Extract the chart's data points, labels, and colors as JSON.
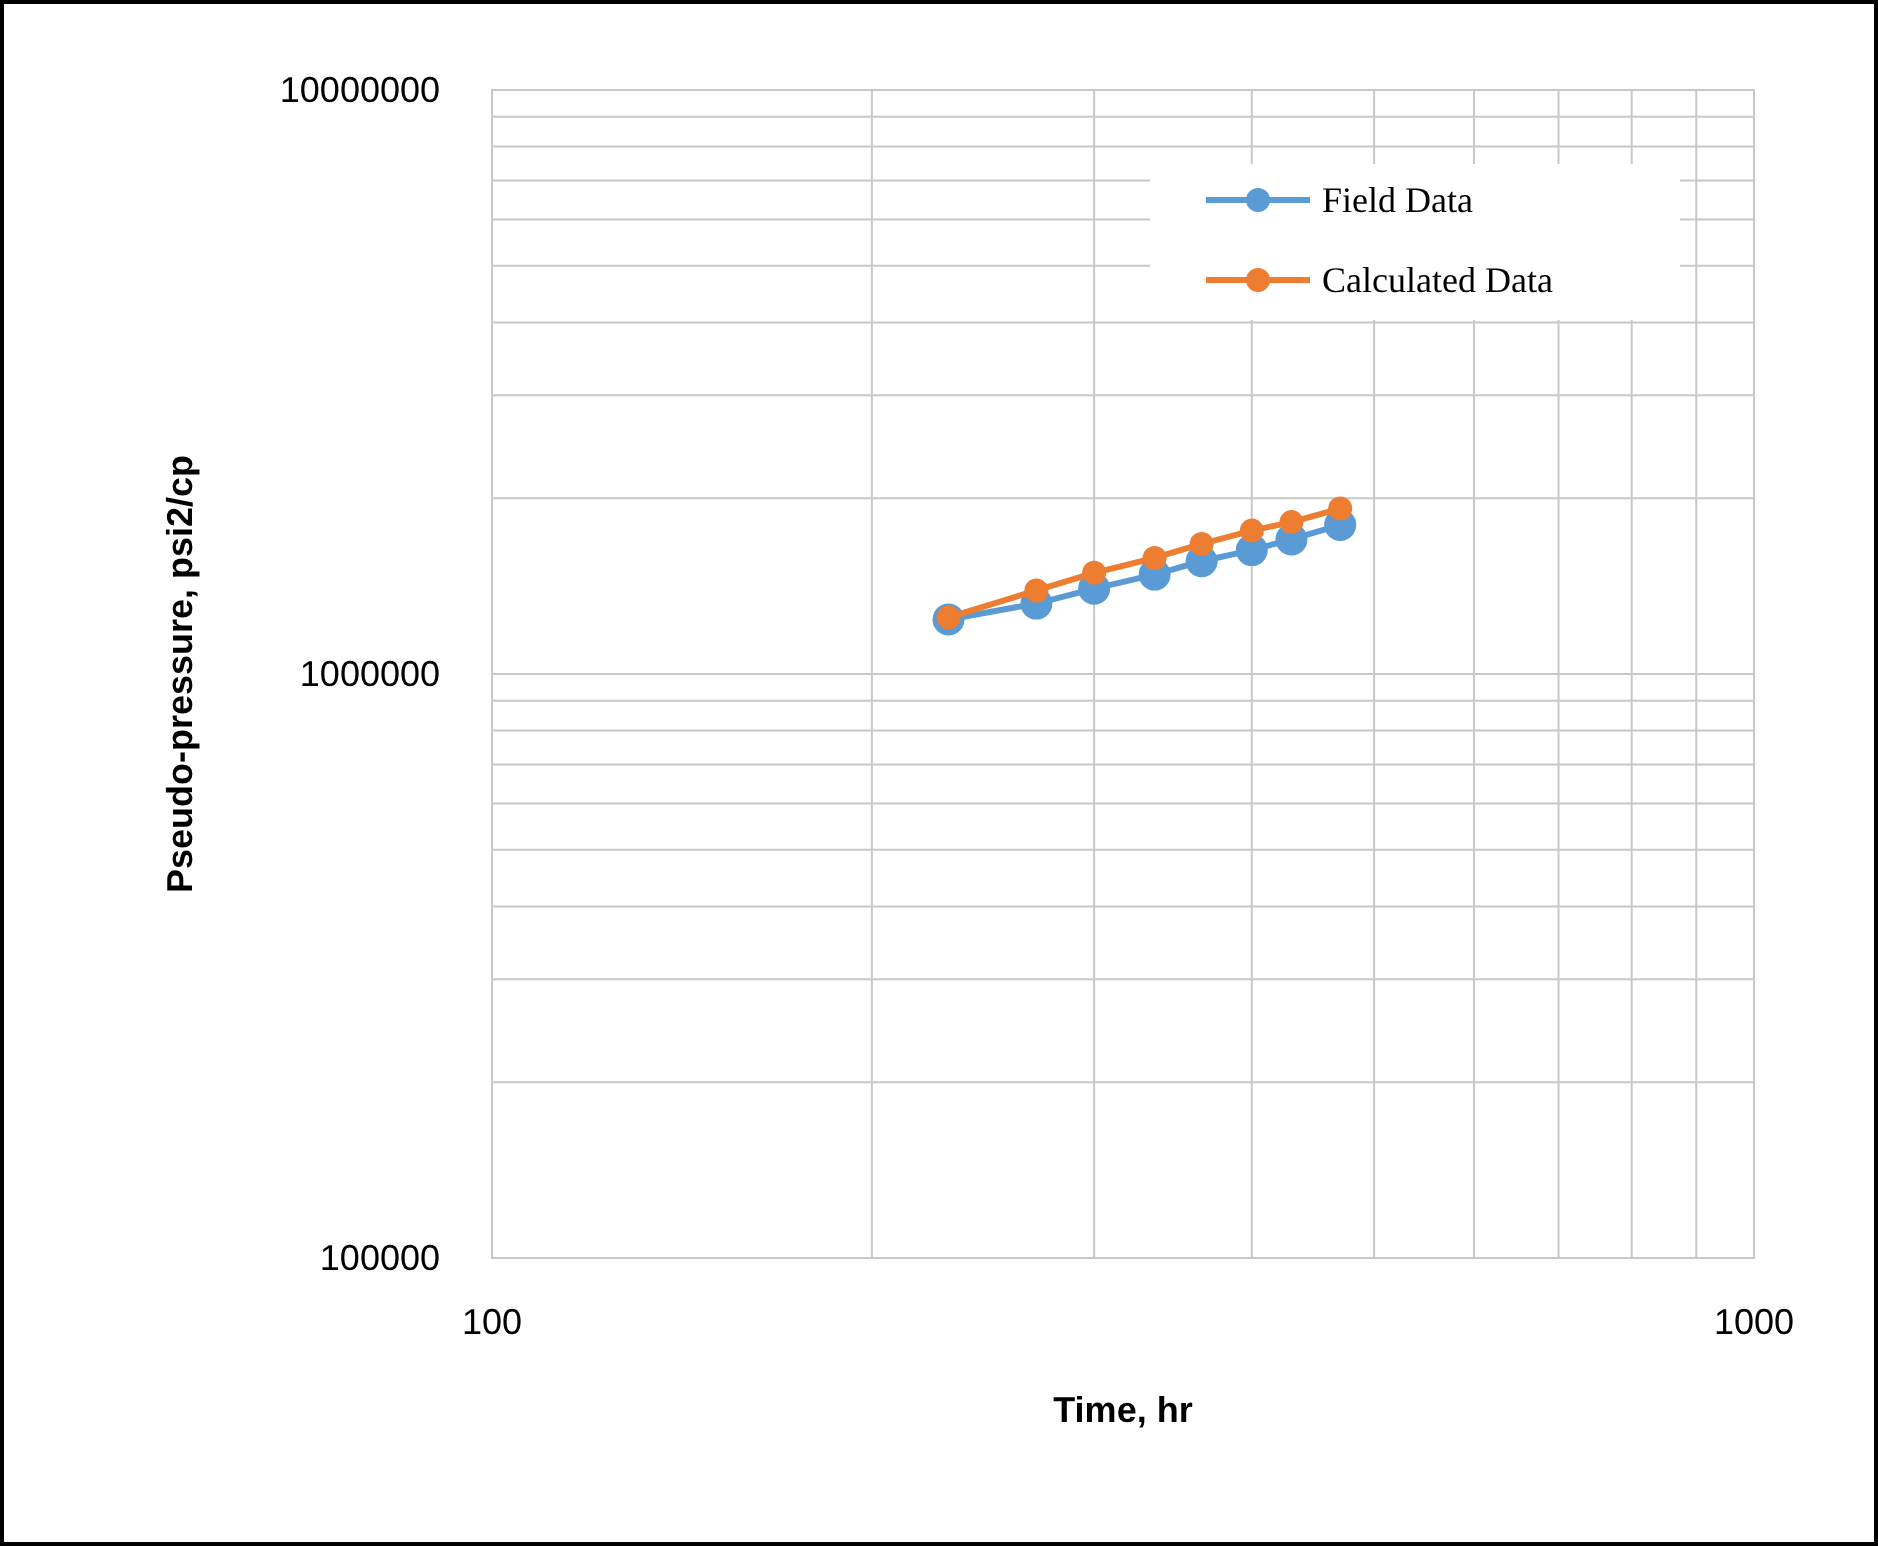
{
  "chart_data": {
    "type": "line",
    "xlabel": "Time, hr",
    "ylabel": "Pseudo-pressure, psi2/cp",
    "log": "xy",
    "grid": true,
    "legend": "top right",
    "marker": "circle",
    "line_style": "solid",
    "xlim": [
      100,
      1000
    ],
    "ylim": [
      100000,
      10000000
    ],
    "xticks": [
      100,
      {
        "value": 200,
        "label": null
      },
      {
        "value": 300,
        "label": null
      },
      {
        "value": 400,
        "label": null
      },
      {
        "value": 500,
        "label": null
      },
      {
        "value": 600,
        "label": null
      },
      {
        "value": 700,
        "label": null
      },
      {
        "value": 800,
        "label": null
      },
      {
        "value": 900,
        "label": null
      },
      1000
    ],
    "yticks": [
      100000,
      {
        "value": 200000,
        "label": null
      },
      {
        "value": 300000,
        "label": null
      },
      {
        "value": 400000,
        "label": null
      },
      {
        "value": 500000,
        "label": null
      },
      {
        "value": 600000,
        "label": null
      },
      {
        "value": 700000,
        "label": null
      },
      {
        "value": 800000,
        "label": null
      },
      {
        "value": 900000,
        "label": null
      },
      1000000,
      {
        "value": 2000000,
        "label": null
      },
      {
        "value": 3000000,
        "label": null
      },
      {
        "value": 4000000,
        "label": null
      },
      {
        "value": 5000000,
        "label": null
      },
      {
        "value": 6000000,
        "label": null
      },
      {
        "value": 7000000,
        "label": null
      },
      {
        "value": 8000000,
        "label": null
      },
      {
        "value": 9000000,
        "label": null
      },
      10000000
    ],
    "x": [
      230,
      270,
      300,
      335,
      365,
      400,
      430,
      470
    ],
    "series": [
      {
        "name": "Field Data",
        "color": "#5b9bd5",
        "values": [
          1240000,
          1320000,
          1400000,
          1480000,
          1560000,
          1630000,
          1700000,
          1800000
        ]
      },
      {
        "name": "Calculated Data",
        "color": "#ed7d31",
        "values": [
          1250000,
          1390000,
          1490000,
          1580000,
          1670000,
          1760000,
          1820000,
          1920000
        ]
      }
    ]
  }
}
